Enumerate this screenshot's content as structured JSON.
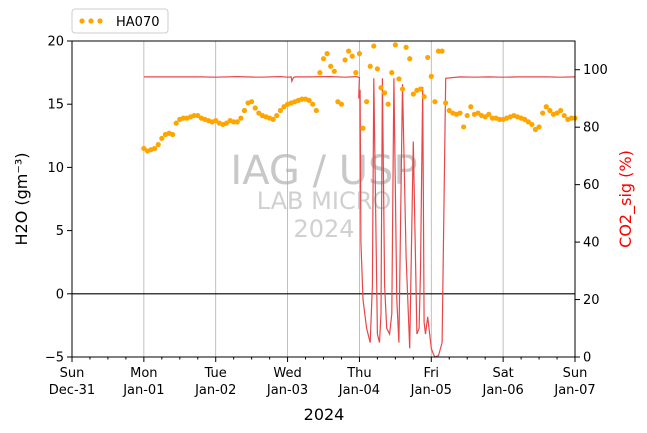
{
  "chart_data": {
    "type": "line",
    "xlabel": "2024",
    "ylabel_left": "H2O (gm⁻³)",
    "ylabel_right": "CO2_sig (%)",
    "ylabel_right_color": "#ff0000",
    "ylim_left": [
      -5,
      20
    ],
    "ylim_right": [
      0,
      110
    ],
    "xlim": [
      "2023-12-31",
      "2024-01-07"
    ],
    "yticks_left": [
      "−5",
      "0",
      "5",
      "10",
      "15",
      "20"
    ],
    "yticks_right": [
      "0",
      "20",
      "40",
      "60",
      "80",
      "100"
    ],
    "xticks": [
      {
        "day": "Sun",
        "date": "Dec-31"
      },
      {
        "day": "Mon",
        "date": "Jan-01"
      },
      {
        "day": "Tue",
        "date": "Jan-02"
      },
      {
        "day": "Wed",
        "date": "Jan-03"
      },
      {
        "day": "Thu",
        "date": "Jan-04"
      },
      {
        "day": "Fri",
        "date": "Jan-05"
      },
      {
        "day": "Sat",
        "date": "Jan-06"
      },
      {
        "day": "Sun",
        "date": "Jan-07"
      }
    ],
    "grid": "vertical",
    "zero_line_left": 0,
    "legend": {
      "placement": "top-left",
      "entries": [
        "HA070"
      ]
    },
    "watermark": {
      "line1": "IAG / USP",
      "line2": "LAB MICRO",
      "line3": "2024"
    },
    "series": [
      {
        "name": "HA070",
        "axis": "left",
        "style": "dotted",
        "color": "#ffa500",
        "x_days": [
          1.0,
          1.05,
          1.1,
          1.15,
          1.2,
          1.25,
          1.3,
          1.35,
          1.4,
          1.45,
          1.5,
          1.55,
          1.6,
          1.65,
          1.7,
          1.75,
          1.8,
          1.85,
          1.9,
          1.95,
          2.0,
          2.05,
          2.1,
          2.15,
          2.2,
          2.25,
          2.3,
          2.35,
          2.4,
          2.45,
          2.5,
          2.55,
          2.6,
          2.65,
          2.7,
          2.75,
          2.8,
          2.85,
          2.9,
          2.95,
          3.0,
          3.05,
          3.1,
          3.15,
          3.2,
          3.25,
          3.3,
          3.35,
          3.4,
          3.45,
          3.5,
          3.55,
          3.6,
          3.65,
          3.7,
          3.75,
          3.8,
          3.85,
          3.9,
          3.95,
          4.0,
          4.05,
          4.1,
          4.15,
          4.2,
          4.25,
          4.3,
          4.35,
          4.4,
          4.45,
          4.5,
          4.55,
          4.6,
          4.65,
          4.7,
          4.75,
          4.8,
          4.85,
          4.9,
          4.95,
          5.0,
          5.05,
          5.1,
          5.15,
          5.2,
          5.25,
          5.3,
          5.35,
          5.4,
          5.45,
          5.5,
          5.55,
          5.6,
          5.65,
          5.7,
          5.75,
          5.8,
          5.85,
          5.9,
          5.95,
          6.0,
          6.05,
          6.1,
          6.15,
          6.2,
          6.25,
          6.3,
          6.35,
          6.4,
          6.45,
          6.5,
          6.55,
          6.6,
          6.65,
          6.7,
          6.75,
          6.8,
          6.85,
          6.9,
          6.95,
          7.0
        ],
        "values": [
          11.5,
          11.3,
          11.4,
          11.5,
          11.8,
          12.3,
          12.6,
          12.7,
          12.6,
          13.5,
          13.8,
          13.9,
          13.9,
          14.0,
          14.1,
          14.1,
          13.9,
          13.8,
          13.7,
          13.6,
          13.7,
          13.5,
          13.4,
          13.5,
          13.7,
          13.6,
          13.6,
          13.9,
          14.5,
          15.1,
          15.2,
          14.7,
          14.3,
          14.1,
          14.0,
          13.9,
          13.8,
          14.1,
          14.5,
          14.8,
          15.0,
          15.1,
          15.2,
          15.3,
          15.4,
          15.4,
          15.3,
          15.0,
          14.5,
          17.5,
          18.6,
          19.0,
          18.0,
          17.6,
          15.2,
          15.0,
          18.5,
          19.2,
          18.8,
          17.5,
          19.0,
          13.1,
          15.2,
          18.0,
          19.6,
          17.8,
          16.3,
          15.9,
          15.0,
          17.5,
          19.7,
          17.0,
          16.2,
          19.5,
          18.6,
          15.8,
          16.1,
          16.2,
          15.6,
          18.7,
          17.2,
          15.2,
          19.2,
          19.2,
          15.1,
          14.5,
          14.3,
          14.2,
          14.3,
          13.2,
          14.1,
          14.8,
          14.2,
          14.3,
          14.1,
          14.0,
          14.2,
          13.9,
          13.9,
          13.8,
          13.8,
          13.9,
          14.0,
          14.1,
          14.0,
          13.9,
          13.8,
          13.6,
          13.4,
          13.0,
          13.2,
          14.3,
          14.8,
          14.5,
          14.2,
          14.3,
          14.5,
          14.1,
          13.8,
          13.9,
          13.9
        ]
      },
      {
        "name": "",
        "axis": "right",
        "style": "line",
        "color": "#e8474a",
        "x_days": [
          1.0,
          1.5,
          1.8,
          2.0,
          2.3,
          2.6,
          2.9,
          3.0,
          3.05,
          3.06,
          3.08,
          3.1,
          3.3,
          3.6,
          3.8,
          3.95,
          4.0,
          3.99,
          4.01,
          4.02,
          4.05,
          4.1,
          4.15,
          4.18,
          4.2,
          4.25,
          4.28,
          4.3,
          4.32,
          4.35,
          4.38,
          4.42,
          4.45,
          4.48,
          4.52,
          4.55,
          4.6,
          4.65,
          4.7,
          4.75,
          4.8,
          4.83,
          4.85,
          4.88,
          4.9,
          4.92,
          4.95,
          5.0,
          5.03,
          5.05,
          5.1,
          5.15,
          5.2,
          5.4,
          5.6,
          5.8,
          6.0,
          6.2,
          6.4,
          6.6,
          6.8,
          7.0
        ],
        "values": [
          97.5,
          97.5,
          97.5,
          97.4,
          97.6,
          97.4,
          97.6,
          97.4,
          97.5,
          96.0,
          97.2,
          97.5,
          97.5,
          97.6,
          97.4,
          97.6,
          97.3,
          90.0,
          93.0,
          40.0,
          20.0,
          10.0,
          5.0,
          25.0,
          97.0,
          8.0,
          5.0,
          15.0,
          97.0,
          25.0,
          10.0,
          8.0,
          15.0,
          97.0,
          20.0,
          5.0,
          95.0,
          35.0,
          3.0,
          75.0,
          8.0,
          10.0,
          30.0,
          94.0,
          12.0,
          8.0,
          14.0,
          3.0,
          1.0,
          0.0,
          0.5,
          5.0,
          97.0,
          97.5,
          97.4,
          97.5,
          97.4,
          97.5,
          97.5,
          97.5,
          97.4,
          97.5
        ]
      }
    ]
  }
}
